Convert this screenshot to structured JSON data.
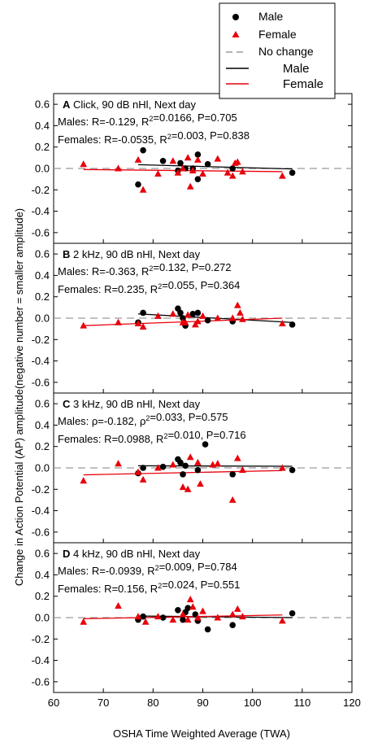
{
  "legend": {
    "items": [
      {
        "label": "Male",
        "kind": "marker-circle",
        "color": "#000000"
      },
      {
        "label": "Female",
        "kind": "marker-triangle",
        "color": "#e8000b"
      },
      {
        "label": "No change",
        "kind": "line-dashed",
        "color": "#9a9a9a"
      },
      {
        "label": "Male",
        "kind": "line",
        "color": "#000000"
      },
      {
        "label": "Female",
        "kind": "line",
        "color": "#e8000b"
      }
    ]
  },
  "colors": {
    "male": "#000000",
    "female": "#e8000b",
    "no_change": "#9a9a9a"
  },
  "chart_data": [
    {
      "type": "scatter",
      "panel": "A",
      "title": "Click, 90 dB nHl, Next day",
      "stats": [
        "Males: R=-0.129, R²=0.0166, P=0.705",
        "Females: R=-0.0535, R²=0.003, P=0.838"
      ],
      "xlim": [
        60,
        120
      ],
      "ylim": [
        -0.7,
        0.7
      ],
      "yticks": [
        0.6,
        0.4,
        0.2,
        0.0,
        -0.2,
        -0.4,
        -0.6
      ],
      "series": [
        {
          "name": "Male",
          "marker": "circle",
          "points": [
            [
              77,
              -0.15
            ],
            [
              78,
              0.17
            ],
            [
              82,
              0.07
            ],
            [
              85,
              -0.02
            ],
            [
              85.5,
              0.05
            ],
            [
              86.5,
              0.0
            ],
            [
              88,
              0.0
            ],
            [
              89,
              -0.1
            ],
            [
              89,
              0.13
            ],
            [
              91,
              0.04
            ],
            [
              96,
              0.0
            ],
            [
              108,
              -0.04
            ]
          ]
        },
        {
          "name": "Female",
          "marker": "triangle",
          "points": [
            [
              66,
              0.04
            ],
            [
              73,
              0.0
            ],
            [
              77,
              0.08
            ],
            [
              78,
              -0.2
            ],
            [
              81,
              -0.05
            ],
            [
              84,
              0.07
            ],
            [
              85,
              -0.04
            ],
            [
              86,
              0.0
            ],
            [
              87,
              0.1
            ],
            [
              87.5,
              -0.17
            ],
            [
              88,
              -0.02
            ],
            [
              89,
              0.08
            ],
            [
              90,
              -0.05
            ],
            [
              93,
              0.09
            ],
            [
              95,
              -0.04
            ],
            [
              96,
              -0.07
            ],
            [
              96.5,
              0.05
            ],
            [
              97,
              0.06
            ],
            [
              98,
              -0.03
            ],
            [
              106,
              -0.07
            ]
          ]
        },
        {
          "name": "Male",
          "kind": "fit",
          "line": [
            [
              77,
              0.035
            ],
            [
              108,
              -0.005
            ]
          ]
        },
        {
          "name": "Female",
          "kind": "fit",
          "line": [
            [
              66,
              -0.01
            ],
            [
              106,
              -0.03
            ]
          ]
        },
        {
          "name": "No change",
          "kind": "reference",
          "value": 0.0
        }
      ]
    },
    {
      "type": "scatter",
      "panel": "B",
      "title": "2 kHz, 90 dB nHl, Next day",
      "stats": [
        "Males: R=-0.363, R²=0.132, P=0.272",
        "Females: R=0.235, R²=0.055, P=0.364"
      ],
      "xlim": [
        60,
        120
      ],
      "ylim": [
        -0.7,
        0.7
      ],
      "yticks": [
        0.6,
        0.4,
        0.2,
        0.0,
        -0.2,
        -0.4,
        -0.6
      ],
      "series": [
        {
          "name": "Male",
          "marker": "circle",
          "points": [
            [
              77,
              -0.04
            ],
            [
              78,
              0.05
            ],
            [
              85,
              0.09
            ],
            [
              85.5,
              0.05
            ],
            [
              86,
              0.0
            ],
            [
              86.5,
              -0.07
            ],
            [
              88,
              0.04
            ],
            [
              89,
              0.05
            ],
            [
              91,
              -0.02
            ],
            [
              96,
              -0.03
            ],
            [
              108,
              -0.06
            ]
          ]
        },
        {
          "name": "Female",
          "marker": "triangle",
          "points": [
            [
              66,
              -0.07
            ],
            [
              73,
              -0.04
            ],
            [
              77,
              -0.05
            ],
            [
              78,
              -0.08
            ],
            [
              81,
              0.02
            ],
            [
              84,
              0.04
            ],
            [
              86,
              -0.04
            ],
            [
              86.5,
              -0.04
            ],
            [
              87,
              0.03
            ],
            [
              88.5,
              -0.06
            ],
            [
              89,
              -0.03
            ],
            [
              90,
              0.02
            ],
            [
              93,
              0.0
            ],
            [
              96,
              0.0
            ],
            [
              97,
              0.12
            ],
            [
              97.5,
              0.05
            ],
            [
              98,
              -0.01
            ],
            [
              106,
              -0.05
            ]
          ]
        },
        {
          "name": "Male",
          "kind": "fit",
          "line": [
            [
              77,
              0.04
            ],
            [
              108,
              -0.04
            ]
          ]
        },
        {
          "name": "Female",
          "kind": "fit",
          "line": [
            [
              66,
              -0.07
            ],
            [
              106,
              0.0
            ]
          ]
        },
        {
          "name": "No change",
          "kind": "reference",
          "value": 0.0
        }
      ]
    },
    {
      "type": "scatter",
      "panel": "C",
      "title": "3 kHz, 90 dB nHl, Next day",
      "stats": [
        "Males: ρ=-0.182, ρ²=0.033, P=0.575",
        "Females: R=0.0988, R²=0.010, P=0.716"
      ],
      "xlim": [
        60,
        120
      ],
      "ylim": [
        -0.7,
        0.7
      ],
      "yticks": [
        0.6,
        0.4,
        0.2,
        0.0,
        -0.2,
        -0.4,
        -0.6
      ],
      "series": [
        {
          "name": "Male",
          "marker": "circle",
          "points": [
            [
              77,
              -0.05
            ],
            [
              78,
              0.0
            ],
            [
              82,
              0.01
            ],
            [
              85,
              0.08
            ],
            [
              85.5,
              0.05
            ],
            [
              86,
              -0.06
            ],
            [
              86.5,
              0.02
            ],
            [
              89,
              -0.02
            ],
            [
              90.5,
              0.22
            ],
            [
              96,
              -0.06
            ],
            [
              108,
              -0.02
            ]
          ]
        },
        {
          "name": "Female",
          "marker": "triangle",
          "points": [
            [
              66,
              -0.12
            ],
            [
              73,
              0.04
            ],
            [
              77,
              -0.04
            ],
            [
              78,
              -0.11
            ],
            [
              81,
              0.0
            ],
            [
              84,
              0.03
            ],
            [
              86,
              -0.18
            ],
            [
              87,
              -0.2
            ],
            [
              87.5,
              0.1
            ],
            [
              89,
              0.05
            ],
            [
              89.5,
              -0.15
            ],
            [
              92,
              0.03
            ],
            [
              93,
              0.04
            ],
            [
              96,
              -0.3
            ],
            [
              97,
              0.09
            ],
            [
              98,
              -0.02
            ],
            [
              106,
              0.0
            ]
          ]
        },
        {
          "name": "Male",
          "kind": "fit",
          "line": [
            [
              77,
              0.02
            ],
            [
              108,
              0.015
            ]
          ]
        },
        {
          "name": "Female",
          "kind": "fit",
          "line": [
            [
              66,
              -0.065
            ],
            [
              106,
              -0.025
            ]
          ]
        },
        {
          "name": "No change",
          "kind": "reference",
          "value": 0.0
        }
      ]
    },
    {
      "type": "scatter",
      "panel": "D",
      "title": "4 kHz, 90 dB nHl, Next day",
      "stats": [
        "Males: R=-0.0939, R²=0.009, P=0.784",
        "Females: R=0.156, R²=0.024, P=0.551"
      ],
      "xlim": [
        60,
        120
      ],
      "ylim": [
        -0.7,
        0.7
      ],
      "yticks": [
        0.6,
        0.4,
        0.2,
        0.0,
        -0.2,
        -0.4,
        -0.6
      ],
      "xticks": [
        60,
        70,
        80,
        90,
        100,
        110,
        120
      ],
      "series": [
        {
          "name": "Male",
          "marker": "circle",
          "points": [
            [
              77,
              -0.02
            ],
            [
              78,
              0.01
            ],
            [
              82,
              0.0
            ],
            [
              85,
              0.07
            ],
            [
              86,
              -0.02
            ],
            [
              86.5,
              0.05
            ],
            [
              87,
              0.09
            ],
            [
              88.5,
              0.03
            ],
            [
              89,
              -0.03
            ],
            [
              91,
              -0.11
            ],
            [
              96,
              -0.07
            ],
            [
              108,
              0.04
            ]
          ]
        },
        {
          "name": "Female",
          "marker": "triangle",
          "points": [
            [
              66,
              -0.04
            ],
            [
              73,
              0.11
            ],
            [
              77,
              0.01
            ],
            [
              78.5,
              -0.04
            ],
            [
              81,
              0.01
            ],
            [
              84,
              -0.02
            ],
            [
              86,
              0.03
            ],
            [
              87,
              -0.02
            ],
            [
              87.5,
              0.17
            ],
            [
              88,
              0.1
            ],
            [
              89,
              0.0
            ],
            [
              90,
              0.06
            ],
            [
              93,
              0.0
            ],
            [
              96,
              0.03
            ],
            [
              97,
              0.08
            ],
            [
              98,
              0.01
            ],
            [
              106,
              -0.03
            ]
          ]
        },
        {
          "name": "Male",
          "kind": "fit",
          "line": [
            [
              77,
              0.015
            ],
            [
              108,
              0.0
            ]
          ]
        },
        {
          "name": "Female",
          "kind": "fit",
          "line": [
            [
              66,
              -0.01
            ],
            [
              106,
              0.025
            ]
          ]
        },
        {
          "name": "No change",
          "kind": "reference",
          "value": 0.0
        }
      ]
    }
  ],
  "x_axis": {
    "label": "OSHA Time Weighted Average (TWA)",
    "ticks": [
      "60",
      "70",
      "80",
      "90",
      "100",
      "110",
      "120"
    ]
  },
  "y_axis": {
    "label": "Change in Action Potential (AP) amplitude(negative number = smaller amplitude)"
  }
}
